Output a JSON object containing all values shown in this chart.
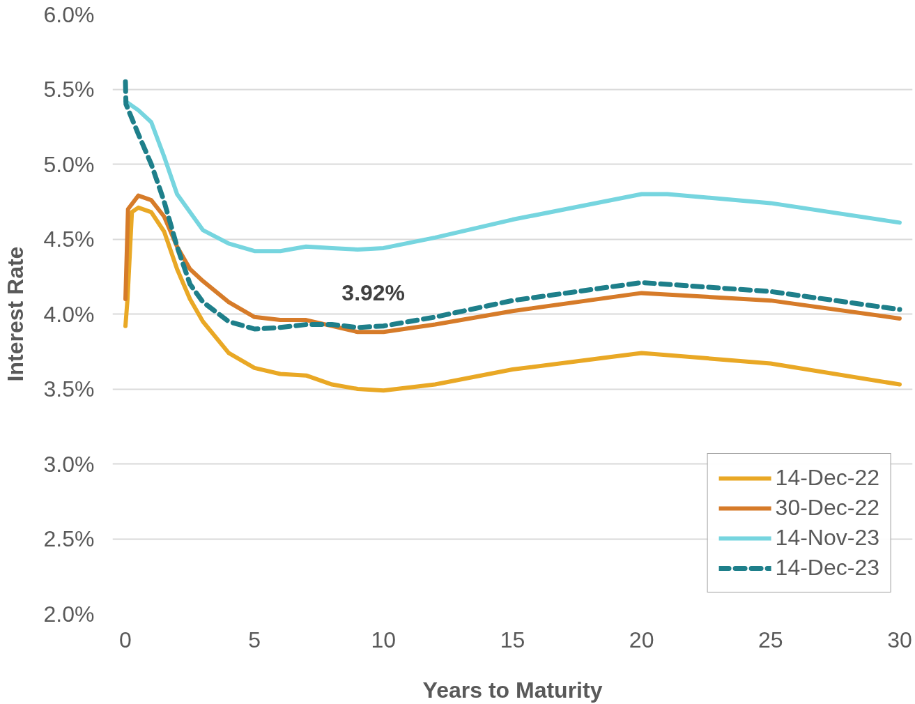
{
  "chart_data": {
    "type": "line",
    "xlabel": "Years to Maturity",
    "ylabel": "Interest Rate",
    "xlim": [
      -0.5,
      30.5
    ],
    "ylim": [
      2,
      6
    ],
    "xticks": [
      0,
      5,
      10,
      15,
      20,
      25,
      30
    ],
    "yticks": [
      {
        "value": 2,
        "label": "2.0%"
      },
      {
        "value": 2.5,
        "label": "2.5%"
      },
      {
        "value": 3,
        "label": "3.0%"
      },
      {
        "value": 3.5,
        "label": "3.5%"
      },
      {
        "value": 4,
        "label": "4.0%"
      },
      {
        "value": 4.5,
        "label": "4.5%"
      },
      {
        "value": 5,
        "label": "5.0%"
      },
      {
        "value": 5.5,
        "label": "5.5%"
      },
      {
        "value": 6,
        "label": "6.0%"
      }
    ],
    "grid": "y",
    "legend": "bottom right",
    "marker": "none",
    "annotations": [
      {
        "text": "3.92%",
        "x": 10,
        "y": 3.92
      }
    ],
    "series": [
      {
        "name": "14-Dec-22",
        "color": "#e9a825",
        "line_style": "solid",
        "x": [
          0,
          0.08,
          0.25,
          0.5,
          1,
          1.5,
          2,
          2.5,
          3,
          4,
          5,
          6,
          7,
          8,
          9,
          10,
          12,
          15,
          20,
          25,
          30
        ],
        "values": [
          3.92,
          4.1,
          4.68,
          4.71,
          4.68,
          4.55,
          4.3,
          4.1,
          3.95,
          3.74,
          3.64,
          3.6,
          3.59,
          3.53,
          3.5,
          3.49,
          3.53,
          3.63,
          3.74,
          3.67,
          3.53
        ]
      },
      {
        "name": "30-Dec-22",
        "color": "#d67b29",
        "line_style": "solid",
        "x": [
          0,
          0.1,
          0.5,
          1,
          1.5,
          2,
          2.5,
          3,
          4,
          5,
          6,
          7,
          8,
          9,
          10,
          12,
          15,
          20,
          25,
          30
        ],
        "values": [
          4.1,
          4.7,
          4.79,
          4.76,
          4.65,
          4.45,
          4.3,
          4.22,
          4.08,
          3.98,
          3.96,
          3.96,
          3.92,
          3.88,
          3.88,
          3.93,
          4.02,
          4.14,
          4.09,
          3.97
        ]
      },
      {
        "name": "14-Nov-23",
        "color": "#76d5df",
        "line_style": "solid",
        "x": [
          0,
          0.5,
          1,
          1.5,
          2,
          3,
          4,
          5,
          6,
          7,
          8,
          9,
          10,
          12,
          15,
          20,
          21,
          25,
          30
        ],
        "values": [
          5.42,
          5.36,
          5.28,
          5.05,
          4.8,
          4.56,
          4.47,
          4.42,
          4.42,
          4.45,
          4.44,
          4.43,
          4.44,
          4.51,
          4.63,
          4.8,
          4.8,
          4.74,
          4.61
        ]
      },
      {
        "name": "14-Dec-23",
        "color": "#1e7f8a",
        "line_style": "dashed",
        "x": [
          0,
          0.02,
          0.5,
          1,
          1.5,
          2,
          2.5,
          3,
          4,
          5,
          6,
          7,
          8,
          9,
          10,
          12,
          15,
          20,
          25,
          30
        ],
        "values": [
          5.55,
          5.4,
          5.2,
          5.0,
          4.75,
          4.45,
          4.2,
          4.08,
          3.95,
          3.9,
          3.91,
          3.93,
          3.93,
          3.91,
          3.92,
          3.98,
          4.09,
          4.21,
          4.15,
          4.03
        ]
      }
    ]
  }
}
